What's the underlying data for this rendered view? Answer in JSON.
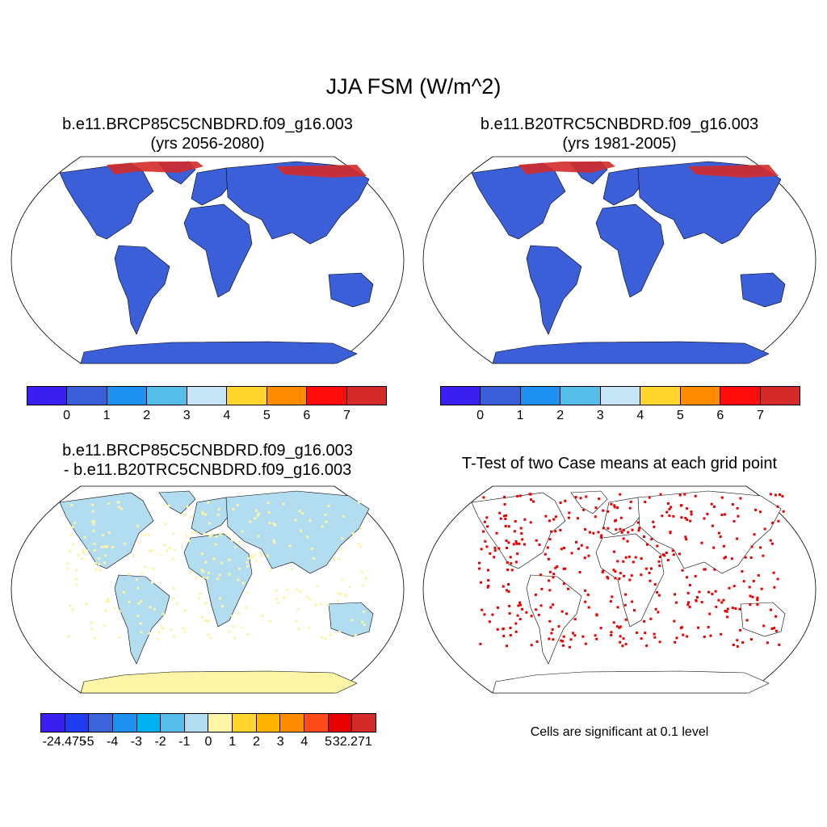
{
  "title": "JJA FSM (W/m^2)",
  "panels": [
    {
      "id": "case1",
      "title_line1": "b.e11.BRCP85C5CNBDRD.f09_g16.003",
      "title_line2": "(yrs 2056-2080)",
      "fill": "#3b5fd9"
    },
    {
      "id": "case2",
      "title_line1": "b.e11.B20TRC5CNBDRD.f09_g16.003",
      "title_line2": "(yrs 1981-2005)",
      "fill": "#3b5fd9"
    },
    {
      "id": "difference",
      "title_line1": "b.e11.BRCP85C5CNBDRD.f09_g16.003",
      "title_line2": "- b.e11.B20TRC5CNBDRD.f09_g16.003",
      "fill": "#b2dcf0",
      "antarctica_fill": "#fdf5a6"
    },
    {
      "id": "ttest",
      "title_line1": "T-Test of two Case means at each grid point",
      "fill": "#ffffff",
      "dot_color": "#e60000"
    }
  ],
  "colorbar_cases": {
    "colors": [
      "#3b1ff0",
      "#3b5fd9",
      "#1e90f0",
      "#56bdea",
      "#c6e6f8",
      "#ffd52e",
      "#ff8c00",
      "#ff0d0d",
      "#d42a2a"
    ],
    "labels": [
      "0",
      "1",
      "2",
      "3",
      "4",
      "5",
      "6",
      "7"
    ]
  },
  "colorbar_diff": {
    "colors": [
      "#3b1ff0",
      "#1e3cf0",
      "#3b64dc",
      "#1e90f0",
      "#00b2f0",
      "#56bdea",
      "#b2dcf0",
      "#fdf5a6",
      "#ffd52e",
      "#ffb300",
      "#ff8c00",
      "#ff4a1a",
      "#e60000",
      "#d42a2a"
    ],
    "labels": [
      "-24.475",
      "-5",
      "-4",
      "-3",
      "-2",
      "-1",
      "0",
      "1",
      "2",
      "3",
      "4",
      "5",
      "32.271"
    ]
  },
  "significance_note": "Cells are significant at 0.1 level"
}
